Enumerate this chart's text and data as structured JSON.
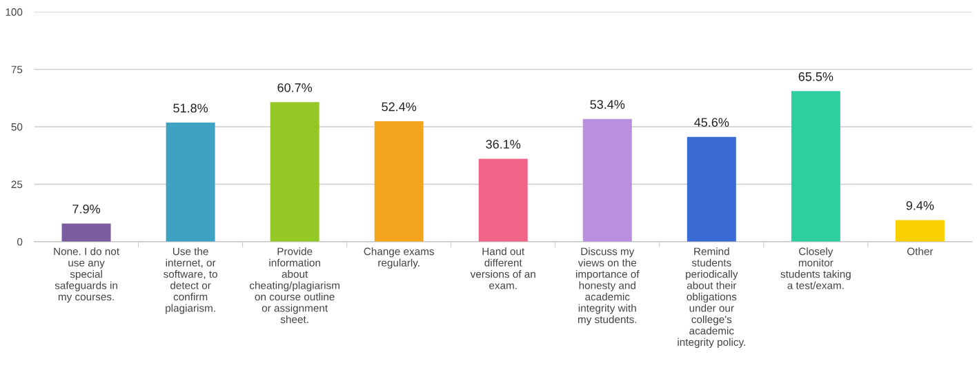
{
  "chart_data": {
    "type": "bar",
    "categories": [
      "None. I do not\nuse any\nspecial\nsafeguards in\nmy courses.",
      "Use the\ninternet, or\nsoftware, to\ndetect or\nconfirm\nplagiarism.",
      "Provide\ninformation\nabout\ncheating/plagiarism\non course outline\nor assignment\nsheet.",
      "Change exams\nregularly.",
      "Hand out\ndifferent\nversions of an\nexam.",
      "Discuss my\nviews on the\nimportance of\nhonesty and\nacademic\nintegrity with\nmy students.",
      "Remind\nstudents\nperiodically\nabout their\nobligations\nunder our\ncollege's\nacademic\nintegrity policy.",
      "Closely\nmonitor\nstudents taking\na test/exam.",
      "Other"
    ],
    "values": [
      7.9,
      51.8,
      60.7,
      52.4,
      36.1,
      53.4,
      45.6,
      65.5,
      9.4
    ],
    "value_labels": [
      "7.9%",
      "51.8%",
      "60.7%",
      "52.4%",
      "36.1%",
      "53.4%",
      "45.6%",
      "65.5%",
      "9.4%"
    ],
    "colors": [
      "#7b5c9e",
      "#3ea3c2",
      "#93c826",
      "#f4a41c",
      "#ef6487",
      "#bb8fe0",
      "#3a6bd4",
      "#2dcf9f",
      "#f8d000"
    ],
    "ylim": [
      0,
      100
    ],
    "yticks": [
      0,
      25,
      50,
      75,
      100
    ],
    "grid": "y"
  }
}
